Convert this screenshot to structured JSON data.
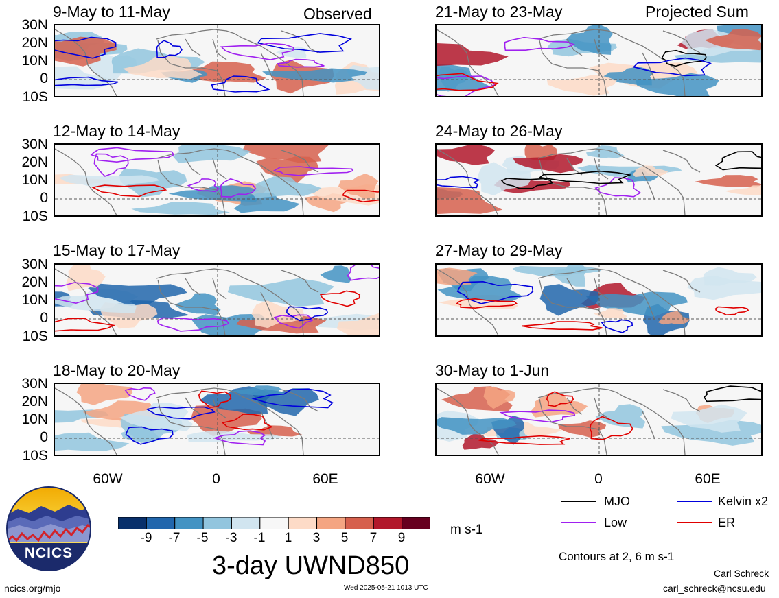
{
  "headers": {
    "left": "Observed",
    "right": "Projected Sum"
  },
  "panels": [
    {
      "title": "9-May to 11-May"
    },
    {
      "title": "12-May to 14-May"
    },
    {
      "title": "15-May to 17-May"
    },
    {
      "title": "18-May to 20-May"
    },
    {
      "title": "21-May to 23-May"
    },
    {
      "title": "24-May to 26-May"
    },
    {
      "title": "27-May to 29-May"
    },
    {
      "title": "30-May to 1-Jun"
    }
  ],
  "lat_labels": [
    "30N",
    "20N",
    "10N",
    "0",
    "10S"
  ],
  "lon_labels": [
    "60W",
    "0",
    "60E"
  ],
  "colorbar": {
    "labels": [
      "-9",
      "-7",
      "-5",
      "-3",
      "-1",
      "1",
      "3",
      "5",
      "7",
      "9"
    ],
    "colors": [
      "#08306b",
      "#2166ac",
      "#4393c3",
      "#92c5de",
      "#d1e5f0",
      "#f7f7f7",
      "#fddbc7",
      "#f4a582",
      "#d6604d",
      "#b2182b",
      "#67001f"
    ],
    "units": "m s-1"
  },
  "title": "3-day UWND850",
  "legend": {
    "items": [
      {
        "label": "MJO",
        "color": "#000000"
      },
      {
        "label": "Kelvin x2",
        "color": "#0000dd"
      },
      {
        "label": "Low",
        "color": "#a020f0"
      },
      {
        "label": "ER",
        "color": "#e00000"
      }
    ],
    "note": "Contours at 2, 6 m s-1"
  },
  "logo": {
    "text": "NCICS"
  },
  "footer": {
    "url": "ncics.org/mjo",
    "timestamp": "Wed 2025-05-21 1013 UTC",
    "author": "Carl Schreck",
    "email": "carl_schreck@ncsu.edu"
  }
}
